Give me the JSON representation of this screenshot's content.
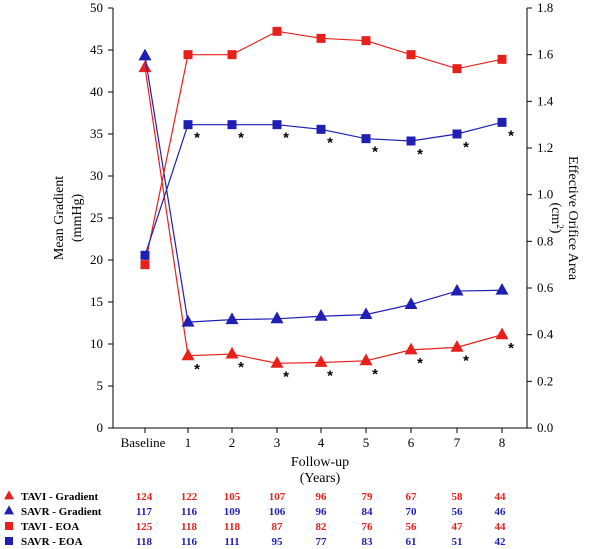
{
  "colors": {
    "tavi": "#e8201c",
    "savr": "#1f1fb4",
    "axis": "#000000"
  },
  "chart_data": {
    "type": "line",
    "categories": [
      "Baseline",
      "1",
      "2",
      "3",
      "4",
      "5",
      "6",
      "7",
      "8"
    ],
    "xlabel_line1": "Follow-up",
    "xlabel_line2": "(Years)",
    "ylabel_left_line1": "Mean Gradient",
    "ylabel_left_line2": "(mmHg)",
    "ylabel_right_line1": "Effective Orifice Area",
    "ylabel_right_line2": "(cm",
    "ylabel_right_sup": "2",
    "ylabel_right_close": ")",
    "ylim_left": [
      0,
      50
    ],
    "ylim_right": [
      0,
      1.8
    ],
    "yticks_left": [
      "0",
      "5",
      "10",
      "15",
      "20",
      "25",
      "30",
      "35",
      "40",
      "45",
      "50"
    ],
    "yticks_right": [
      "0.0",
      "0.2",
      "0.4",
      "0.6",
      "0.8",
      "1.0",
      "1.2",
      "1.4",
      "1.6",
      "1.8"
    ],
    "series": [
      {
        "name": "TAVI - Gradient",
        "axis": "left",
        "marker": "triangle",
        "color": "tavi",
        "values": [
          42.9,
          8.6,
          8.8,
          7.7,
          7.8,
          8.0,
          9.3,
          9.6,
          11.1
        ]
      },
      {
        "name": "SAVR - Gradient",
        "axis": "left",
        "marker": "triangle",
        "color": "savr",
        "values": [
          44.3,
          12.6,
          12.9,
          13.0,
          13.3,
          13.5,
          14.7,
          16.3,
          16.4
        ]
      },
      {
        "name": "TAVI - EOA",
        "axis": "right",
        "marker": "square",
        "color": "tavi",
        "values": [
          0.7,
          1.6,
          1.6,
          1.7,
          1.67,
          1.66,
          1.6,
          1.54,
          1.58
        ]
      },
      {
        "name": "SAVR - EOA",
        "axis": "right",
        "marker": "square",
        "color": "savr",
        "values": [
          0.74,
          1.3,
          1.3,
          1.3,
          1.28,
          1.24,
          1.23,
          1.26,
          1.31
        ]
      }
    ],
    "significance": [
      {
        "series": "SAVR - EOA",
        "marker": "*",
        "categories": [
          "1",
          "2",
          "3",
          "4",
          "5",
          "6",
          "7",
          "8"
        ]
      },
      {
        "series": "TAVI - Gradient",
        "marker": "*",
        "categories": [
          "1",
          "2",
          "3",
          "4",
          "5",
          "6",
          "7",
          "8"
        ]
      }
    ],
    "counts_table": [
      {
        "label": "TAVI - Gradient",
        "marker": "triangle",
        "color": "tavi",
        "values": [
          "124",
          "122",
          "105",
          "107",
          "96",
          "79",
          "67",
          "58",
          "44"
        ]
      },
      {
        "label": "SAVR - Gradient",
        "marker": "triangle",
        "color": "savr",
        "values": [
          "117",
          "116",
          "109",
          "106",
          "96",
          "84",
          "70",
          "56",
          "46"
        ]
      },
      {
        "label": "TAVI - EOA",
        "marker": "square",
        "color": "tavi",
        "values": [
          "125",
          "118",
          "118",
          "87",
          "82",
          "76",
          "56",
          "47",
          "44"
        ]
      },
      {
        "label": "SAVR - EOA",
        "marker": "square",
        "color": "savr",
        "values": [
          "118",
          "116",
          "111",
          "95",
          "77",
          "83",
          "61",
          "51",
          "42"
        ]
      }
    ]
  }
}
